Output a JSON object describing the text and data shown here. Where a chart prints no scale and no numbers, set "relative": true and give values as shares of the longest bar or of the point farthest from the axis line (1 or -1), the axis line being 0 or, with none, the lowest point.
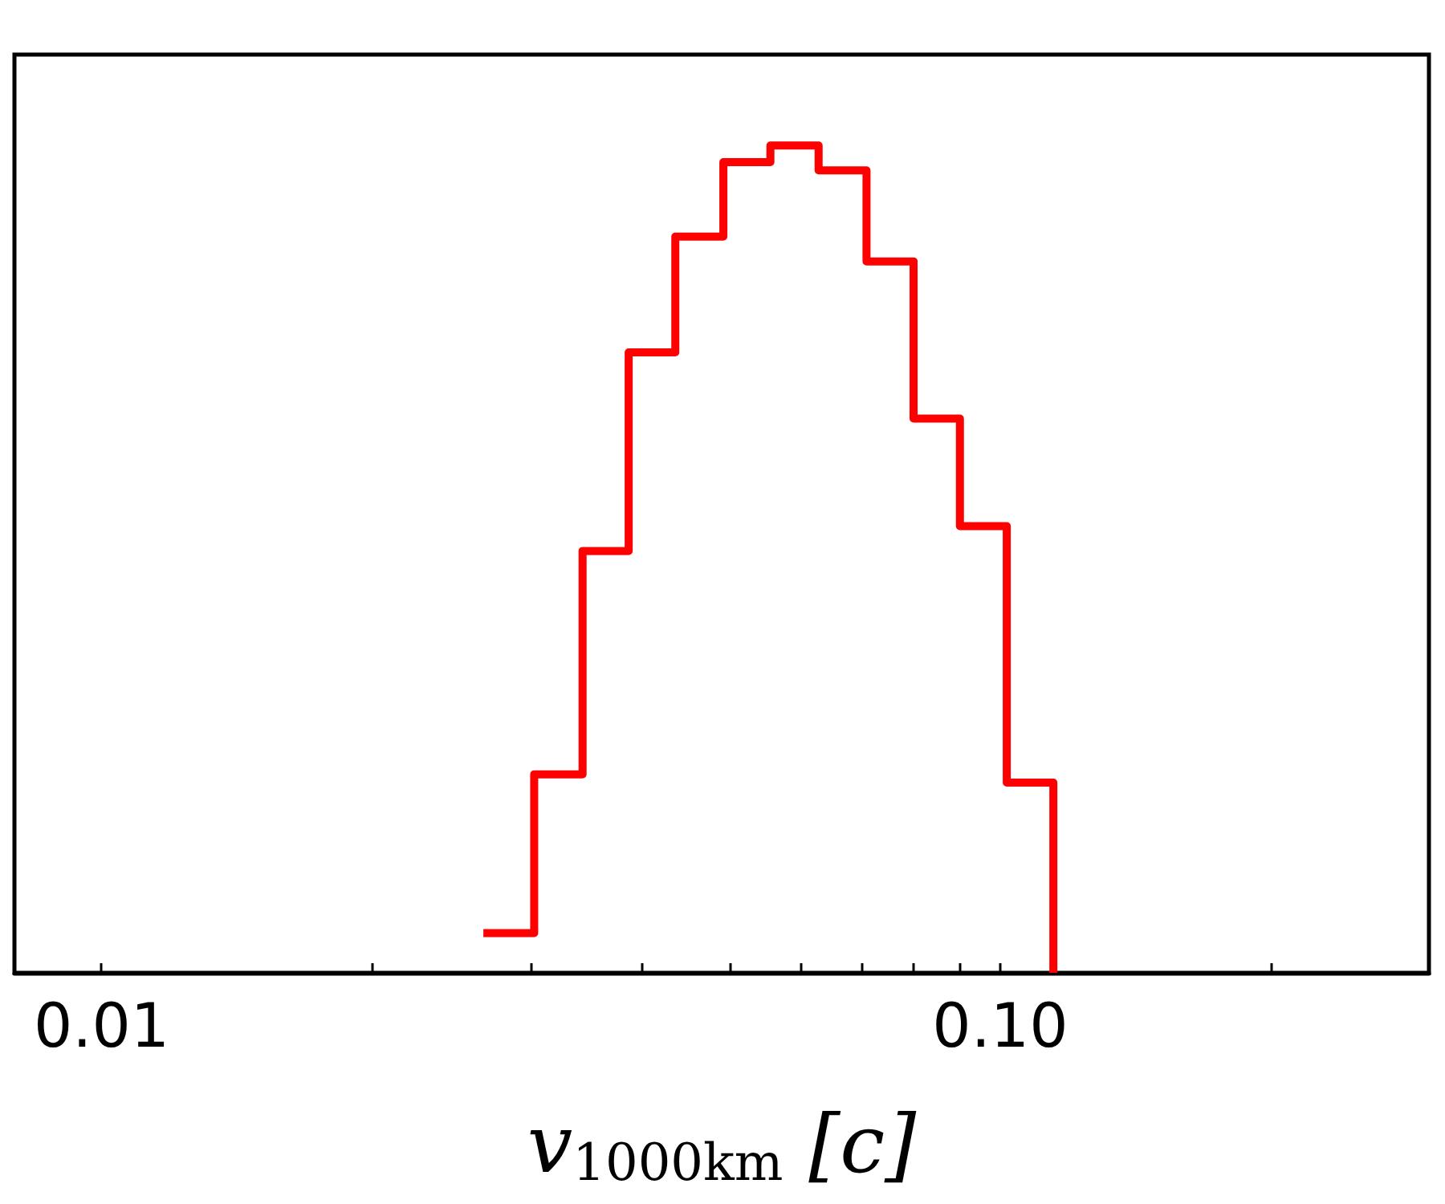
{
  "chart_data": {
    "type": "step",
    "xlabel": "v$_{1000km}$ [c]",
    "relative": true,
    "color": "#ff0000",
    "log": "x",
    "x": [
      0.0266,
      0.0303,
      0.0343,
      0.0386,
      0.0435,
      0.0492,
      0.0555,
      0.0628,
      0.071,
      0.0801,
      0.0902,
      0.1017,
      0.1146
    ],
    "values": [
      0.048,
      0.24,
      0.51,
      0.75,
      0.89,
      0.98,
      1,
      0.97,
      0.86,
      0.67,
      0.54,
      0.23,
      0
    ],
    "xlim": [
      0.008,
      0.3
    ],
    "xticks": [
      {
        "value": 0.01,
        "label": "0.01"
      },
      {
        "value": 0.02,
        "label": null
      },
      {
        "value": 0.03,
        "label": null
      },
      {
        "value": 0.04,
        "label": null
      },
      {
        "value": 0.05,
        "label": null
      },
      {
        "value": 0.06,
        "label": null
      },
      {
        "value": 0.07,
        "label": null
      },
      {
        "value": 0.08,
        "label": null
      },
      {
        "value": 0.09,
        "label": null
      },
      {
        "value": 0.1,
        "label": "0.10"
      },
      {
        "value": 0.2,
        "label": null
      },
      {
        "value": 0.3,
        "label": null
      }
    ],
    "grid": false
  }
}
